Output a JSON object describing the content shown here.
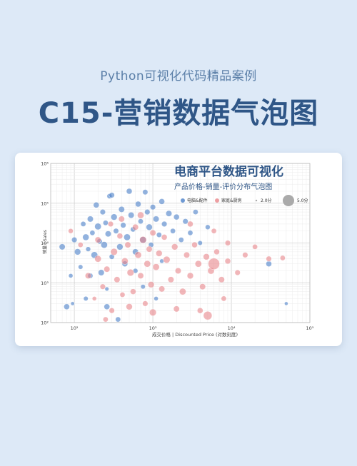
{
  "header": {
    "subtitle": "Python可视化代码精品案例",
    "title": "C15-营销数据气泡图"
  },
  "colors": {
    "background": "#dde9f7",
    "title": "#2f5687",
    "subtitle": "#5b7fa8",
    "series_electronics": "#4a7fc8",
    "series_home": "#e8868a",
    "size_legend": "#aaaaaa"
  },
  "chart_data": {
    "type": "scatter",
    "title": "电商平台数据可视化",
    "subtitle": "产品价格-销量-评价分布气泡图",
    "xlabel": "成交价格 | Discounted Price (对数刻度)",
    "ylabel": "销量 | Sales",
    "xscale": "log",
    "yscale": "log",
    "xlim": [
      50,
      100000
    ],
    "ylim": [
      100,
      1000000
    ],
    "xticks": [
      "10²",
      "10³",
      "10⁴",
      "10⁵"
    ],
    "yticks": [
      "10²",
      "10³",
      "10⁴",
      "10⁵",
      "10⁶"
    ],
    "grid": true,
    "legend_position": "top-right",
    "legend": {
      "series": [
        "电脑&配件",
        "家庭&厨房"
      ],
      "sizes": [
        {
          "label": "2.0分",
          "rating": 2.0
        },
        {
          "label": "5.0分",
          "rating": 5.0
        }
      ]
    },
    "series": [
      {
        "name": "电脑&配件",
        "color": "#4a7fc8",
        "points": [
          {
            "x": 70,
            "y": 8000,
            "r": 4.2
          },
          {
            "x": 80,
            "y": 250,
            "r": 4.0
          },
          {
            "x": 90,
            "y": 1500,
            "r": 3.0
          },
          {
            "x": 95,
            "y": 300,
            "r": 2.6
          },
          {
            "x": 100,
            "y": 12000,
            "r": 3.8
          },
          {
            "x": 110,
            "y": 6000,
            "r": 4.4
          },
          {
            "x": 120,
            "y": 2500,
            "r": 3.2
          },
          {
            "x": 130,
            "y": 30000,
            "r": 3.6
          },
          {
            "x": 140,
            "y": 14000,
            "r": 4.5
          },
          {
            "x": 150,
            "y": 7000,
            "r": 3.4
          },
          {
            "x": 160,
            "y": 40000,
            "r": 4.2
          },
          {
            "x": 170,
            "y": 18000,
            "r": 3.6
          },
          {
            "x": 180,
            "y": 5000,
            "r": 4.6
          },
          {
            "x": 190,
            "y": 90000,
            "r": 4.0
          },
          {
            "x": 200,
            "y": 26000,
            "r": 4.6
          },
          {
            "x": 210,
            "y": 11000,
            "r": 3.7
          },
          {
            "x": 220,
            "y": 1800,
            "r": 4.2
          },
          {
            "x": 230,
            "y": 60000,
            "r": 3.8
          },
          {
            "x": 240,
            "y": 9000,
            "r": 4.6
          },
          {
            "x": 250,
            "y": 32000,
            "r": 3.6
          },
          {
            "x": 260,
            "y": 700,
            "r": 2.8
          },
          {
            "x": 270,
            "y": 17000,
            "r": 4.2
          },
          {
            "x": 280,
            "y": 150000,
            "r": 3.5
          },
          {
            "x": 300,
            "y": 4500,
            "r": 3.6
          },
          {
            "x": 320,
            "y": 45000,
            "r": 4.4
          },
          {
            "x": 340,
            "y": 20000,
            "r": 3.7
          },
          {
            "x": 360,
            "y": 120,
            "r": 3.6
          },
          {
            "x": 380,
            "y": 8000,
            "r": 4.4
          },
          {
            "x": 400,
            "y": 70000,
            "r": 4.2
          },
          {
            "x": 420,
            "y": 28000,
            "r": 3.8
          },
          {
            "x": 440,
            "y": 3000,
            "r": 4.0
          },
          {
            "x": 470,
            "y": 14000,
            "r": 4.6
          },
          {
            "x": 500,
            "y": 200000,
            "r": 4.0
          },
          {
            "x": 530,
            "y": 50000,
            "r": 4.2
          },
          {
            "x": 560,
            "y": 22000,
            "r": 3.6
          },
          {
            "x": 600,
            "y": 6000,
            "r": 4.2
          },
          {
            "x": 650,
            "y": 95000,
            "r": 4.0
          },
          {
            "x": 700,
            "y": 35000,
            "r": 3.6
          },
          {
            "x": 750,
            "y": 12000,
            "r": 4.6
          },
          {
            "x": 800,
            "y": 190000,
            "r": 3.7
          },
          {
            "x": 850,
            "y": 60000,
            "r": 3.8
          },
          {
            "x": 900,
            "y": 25000,
            "r": 4.4
          },
          {
            "x": 950,
            "y": 9000,
            "r": 3.6
          },
          {
            "x": 1000,
            "y": 80000,
            "r": 3.8
          },
          {
            "x": 1100,
            "y": 40000,
            "r": 4.2
          },
          {
            "x": 1200,
            "y": 16000,
            "r": 3.6
          },
          {
            "x": 1300,
            "y": 110000,
            "r": 4.0
          },
          {
            "x": 1400,
            "y": 30000,
            "r": 3.8
          },
          {
            "x": 1600,
            "y": 55000,
            "r": 4.2
          },
          {
            "x": 1800,
            "y": 20000,
            "r": 3.6
          },
          {
            "x": 2000,
            "y": 45000,
            "r": 4.0
          },
          {
            "x": 2300,
            "y": 12000,
            "r": 3.6
          },
          {
            "x": 2600,
            "y": 35000,
            "r": 3.8
          },
          {
            "x": 3000,
            "y": 18000,
            "r": 3.6
          },
          {
            "x": 3500,
            "y": 60000,
            "r": 3.6
          },
          {
            "x": 4000,
            "y": 10000,
            "r": 3.2
          },
          {
            "x": 5000,
            "y": 25000,
            "r": 3.4
          },
          {
            "x": 600,
            "y": 2000,
            "r": 3.4
          },
          {
            "x": 750,
            "y": 800,
            "r": 3.2
          },
          {
            "x": 1300,
            "y": 3500,
            "r": 3.0
          },
          {
            "x": 160,
            "y": 1500,
            "r": 3.6
          },
          {
            "x": 140,
            "y": 400,
            "r": 3.2
          },
          {
            "x": 260,
            "y": 250,
            "r": 4.0
          },
          {
            "x": 300,
            "y": 160000,
            "r": 3.8
          },
          {
            "x": 1100,
            "y": 400,
            "r": 3.0
          },
          {
            "x": 30000,
            "y": 3000,
            "r": 4.0
          },
          {
            "x": 50000,
            "y": 300,
            "r": 2.5
          }
        ]
      },
      {
        "name": "家庭&厨房",
        "color": "#e8868a",
        "points": [
          {
            "x": 90,
            "y": 20000,
            "r": 3.4
          },
          {
            "x": 120,
            "y": 9000,
            "r": 3.6
          },
          {
            "x": 150,
            "y": 1500,
            "r": 4.2
          },
          {
            "x": 180,
            "y": 400,
            "r": 3.0
          },
          {
            "x": 200,
            "y": 4000,
            "r": 4.6
          },
          {
            "x": 230,
            "y": 800,
            "r": 3.8
          },
          {
            "x": 260,
            "y": 2200,
            "r": 4.2
          },
          {
            "x": 290,
            "y": 30000,
            "r": 3.8
          },
          {
            "x": 320,
            "y": 6000,
            "r": 4.8
          },
          {
            "x": 350,
            "y": 1200,
            "r": 4.2
          },
          {
            "x": 380,
            "y": 15000,
            "r": 4.0
          },
          {
            "x": 410,
            "y": 500,
            "r": 3.6
          },
          {
            "x": 440,
            "y": 3500,
            "r": 4.6
          },
          {
            "x": 480,
            "y": 9000,
            "r": 4.2
          },
          {
            "x": 520,
            "y": 1800,
            "r": 4.8
          },
          {
            "x": 560,
            "y": 600,
            "r": 4.0
          },
          {
            "x": 600,
            "y": 25000,
            "r": 4.2
          },
          {
            "x": 650,
            "y": 5000,
            "r": 4.6
          },
          {
            "x": 700,
            "y": 1500,
            "r": 4.2
          },
          {
            "x": 750,
            "y": 12000,
            "r": 4.8
          },
          {
            "x": 800,
            "y": 300,
            "r": 3.8
          },
          {
            "x": 850,
            "y": 3000,
            "r": 4.6
          },
          {
            "x": 900,
            "y": 7000,
            "r": 4.2
          },
          {
            "x": 950,
            "y": 900,
            "r": 4.4
          },
          {
            "x": 1000,
            "y": 18000,
            "r": 4.2
          },
          {
            "x": 1100,
            "y": 2500,
            "r": 4.6
          },
          {
            "x": 1200,
            "y": 5500,
            "r": 4.4
          },
          {
            "x": 1300,
            "y": 700,
            "r": 4.2
          },
          {
            "x": 1400,
            "y": 14000,
            "r": 4.0
          },
          {
            "x": 1500,
            "y": 3800,
            "r": 4.8
          },
          {
            "x": 1700,
            "y": 1200,
            "r": 4.2
          },
          {
            "x": 1900,
            "y": 8000,
            "r": 4.4
          },
          {
            "x": 2100,
            "y": 2000,
            "r": 4.2
          },
          {
            "x": 2400,
            "y": 600,
            "r": 4.6
          },
          {
            "x": 2700,
            "y": 5000,
            "r": 4.2
          },
          {
            "x": 3000,
            "y": 1500,
            "r": 4.4
          },
          {
            "x": 3400,
            "y": 9000,
            "r": 4.0
          },
          {
            "x": 3800,
            "y": 3000,
            "r": 4.6
          },
          {
            "x": 4300,
            "y": 800,
            "r": 4.2
          },
          {
            "x": 4800,
            "y": 4500,
            "r": 4.4
          },
          {
            "x": 5500,
            "y": 2000,
            "r": 4.6
          },
          {
            "x": 6500,
            "y": 6000,
            "r": 4.0
          },
          {
            "x": 7500,
            "y": 1200,
            "r": 4.2
          },
          {
            "x": 9000,
            "y": 3500,
            "r": 4.0
          },
          {
            "x": 12000,
            "y": 1800,
            "r": 3.8
          },
          {
            "x": 15000,
            "y": 5000,
            "r": 3.8
          },
          {
            "x": 20000,
            "y": 8000,
            "r": 3.6
          },
          {
            "x": 30000,
            "y": 4000,
            "r": 3.8
          },
          {
            "x": 45000,
            "y": 4200,
            "r": 3.6
          },
          {
            "x": 400,
            "y": 40000,
            "r": 4.2
          },
          {
            "x": 700,
            "y": 50000,
            "r": 4.6
          },
          {
            "x": 300,
            "y": 200,
            "r": 3.8
          },
          {
            "x": 500,
            "y": 250,
            "r": 4.4
          },
          {
            "x": 1000,
            "y": 180,
            "r": 4.8
          },
          {
            "x": 2000,
            "y": 220,
            "r": 4.2
          },
          {
            "x": 5000,
            "y": 150,
            "r": 6.0
          },
          {
            "x": 8000,
            "y": 400,
            "r": 3.6
          },
          {
            "x": 9000,
            "y": 10000,
            "r": 3.8
          },
          {
            "x": 6000,
            "y": 20000,
            "r": 3.6
          },
          {
            "x": 3000,
            "y": 30000,
            "r": 4.0
          },
          {
            "x": 250,
            "y": 120,
            "r": 3.6
          },
          {
            "x": 6000,
            "y": 3000,
            "r": 8.0
          },
          {
            "x": 200,
            "y": 12000,
            "r": 4.2
          },
          {
            "x": 4000,
            "y": 200,
            "r": 4.0
          }
        ]
      }
    ]
  }
}
